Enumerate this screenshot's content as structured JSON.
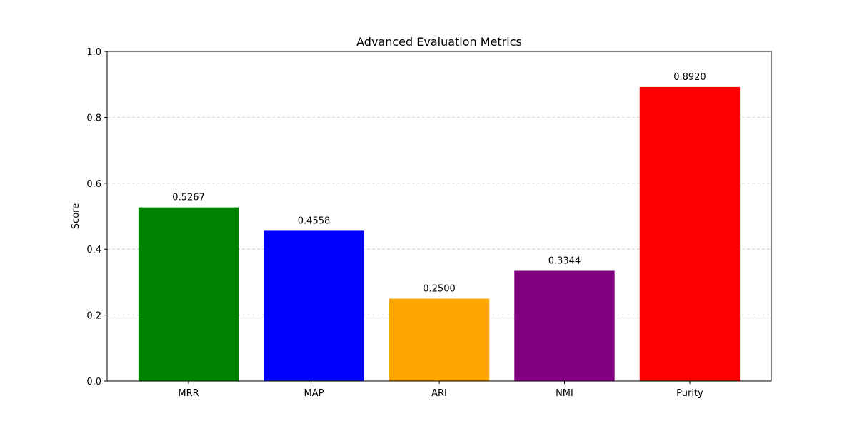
{
  "chart_data": {
    "type": "bar",
    "title": "Advanced Evaluation Metrics",
    "xlabel": "",
    "ylabel": "Score",
    "categories": [
      "MRR",
      "MAP",
      "ARI",
      "NMI",
      "Purity"
    ],
    "values": [
      0.5267,
      0.4558,
      0.25,
      0.3344,
      0.892
    ],
    "value_labels": [
      "0.5267",
      "0.4558",
      "0.2500",
      "0.3344",
      "0.8920"
    ],
    "colors": [
      "#008000",
      "#0000ff",
      "#ffa500",
      "#800080",
      "#ff0000"
    ],
    "ylim": [
      0,
      1.0
    ],
    "yticks": [
      0.0,
      0.2,
      0.4,
      0.6,
      0.8,
      1.0
    ],
    "ytick_labels": [
      "0.0",
      "0.2",
      "0.4",
      "0.6",
      "0.8",
      "1.0"
    ],
    "grid": {
      "axis": "y",
      "style": "dashed",
      "color": "#c0c0c0"
    },
    "legend": "none"
  }
}
